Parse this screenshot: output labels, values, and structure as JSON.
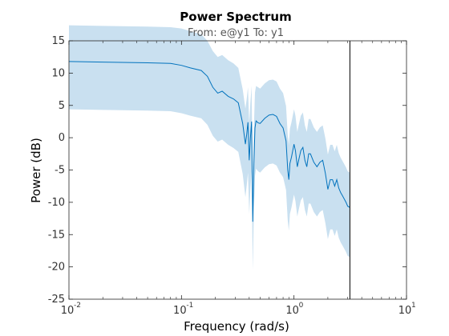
{
  "chart_data": {
    "type": "line",
    "title": "Power Spectrum",
    "subtitle": "From: e@y1  To: y1",
    "xlabel": "Frequency  (rad/s)",
    "ylabel": "Power (dB)",
    "xscale": "log",
    "xlim": [
      0.01,
      10
    ],
    "ylim": [
      -25,
      15
    ],
    "x_ticks": [
      {
        "base": "10",
        "exp": "-2",
        "value": 0.01
      },
      {
        "base": "10",
        "exp": "-1",
        "value": 0.1
      },
      {
        "base": "10",
        "exp": "0",
        "value": 1
      },
      {
        "base": "10",
        "exp": "1",
        "value": 10
      }
    ],
    "y_ticks": [
      "15",
      "10",
      "5",
      "0",
      "-5",
      "-10",
      "-15",
      "-20",
      "-25"
    ],
    "y_tick_values": [
      15,
      10,
      5,
      0,
      -5,
      -10,
      -15,
      -20,
      -25
    ],
    "grid": false,
    "nyquist_frequency": 3.14,
    "colors": {
      "line": "#0072BD",
      "band": "#C9E0F0",
      "axes": "#262626",
      "nyquist": "#000000"
    },
    "series": [
      {
        "x": [
          0.01,
          0.02,
          0.05,
          0.08,
          0.1,
          0.12,
          0.15,
          0.17,
          0.19,
          0.21,
          0.23,
          0.26,
          0.29,
          0.32,
          0.35,
          0.37,
          0.38,
          0.39,
          0.4,
          0.41,
          0.42,
          0.43,
          0.44,
          0.45,
          0.46,
          0.48,
          0.5,
          0.55,
          0.6,
          0.65,
          0.7,
          0.75,
          0.8,
          0.85,
          0.88,
          0.9,
          0.92,
          0.95,
          1.0,
          1.03,
          1.07,
          1.1,
          1.15,
          1.2,
          1.25,
          1.3,
          1.35,
          1.4,
          1.5,
          1.6,
          1.7,
          1.8,
          1.9,
          2.0,
          2.1,
          2.2,
          2.3,
          2.4,
          2.5,
          2.6,
          2.7,
          2.8,
          2.9,
          3.0,
          3.14
        ],
        "mean": [
          11.8,
          11.7,
          11.6,
          11.5,
          11.2,
          10.8,
          10.4,
          9.5,
          7.8,
          6.9,
          7.2,
          6.4,
          6.0,
          5.4,
          2.2,
          -1.0,
          0.5,
          2.4,
          -3.5,
          0.0,
          2.5,
          -13.0,
          -4.0,
          1.5,
          2.6,
          2.3,
          2.2,
          3.0,
          3.5,
          3.6,
          3.3,
          2.2,
          1.5,
          -0.5,
          -5.0,
          -6.5,
          -4.0,
          -3.0,
          -1.0,
          -2.0,
          -4.5,
          -3.5,
          -2.0,
          -1.5,
          -3.5,
          -4.5,
          -2.5,
          -2.5,
          -3.8,
          -4.5,
          -3.8,
          -3.5,
          -5.5,
          -8.0,
          -6.5,
          -6.5,
          -7.5,
          -6.5,
          -7.8,
          -8.5,
          -9.0,
          -9.5,
          -10.0,
          -10.6,
          -10.8
        ],
        "upper": [
          17.4,
          17.3,
          17.2,
          17.1,
          16.9,
          16.5,
          16.0,
          15.0,
          13.4,
          12.5,
          12.8,
          12.0,
          11.5,
          10.8,
          7.5,
          4.5,
          6.0,
          7.8,
          2.2,
          5.5,
          8.0,
          -7.5,
          1.5,
          7.0,
          8.0,
          7.8,
          7.6,
          8.4,
          8.9,
          9.0,
          8.7,
          7.6,
          6.9,
          4.9,
          0.4,
          -1.1,
          1.4,
          2.4,
          4.4,
          3.4,
          0.9,
          1.9,
          3.4,
          3.9,
          1.9,
          0.9,
          2.9,
          2.9,
          1.6,
          0.9,
          1.6,
          1.9,
          -0.1,
          -2.6,
          -1.1,
          -1.1,
          -2.1,
          -1.1,
          -2.4,
          -3.1,
          -3.6,
          -4.1,
          -4.6,
          -5.2,
          -5.4
        ],
        "lower": [
          4.4,
          4.3,
          4.2,
          4.1,
          3.8,
          3.4,
          3.0,
          2.0,
          0.3,
          -0.6,
          -0.3,
          -1.1,
          -1.6,
          -2.2,
          -5.6,
          -9.2,
          -7.4,
          -5.4,
          -11.8,
          -8.0,
          -5.2,
          -20.5,
          -11.8,
          -6.0,
          -4.8,
          -5.2,
          -5.4,
          -4.6,
          -4.1,
          -4.0,
          -4.3,
          -5.4,
          -6.1,
          -8.1,
          -12.8,
          -14.4,
          -11.8,
          -10.8,
          -8.8,
          -9.8,
          -12.2,
          -11.2,
          -9.7,
          -9.2,
          -11.2,
          -12.2,
          -10.2,
          -10.2,
          -11.5,
          -12.2,
          -11.5,
          -11.2,
          -13.2,
          -15.7,
          -14.2,
          -14.2,
          -15.2,
          -14.2,
          -15.5,
          -16.2,
          -16.7,
          -17.2,
          -17.7,
          -18.3,
          -18.5
        ]
      }
    ]
  }
}
